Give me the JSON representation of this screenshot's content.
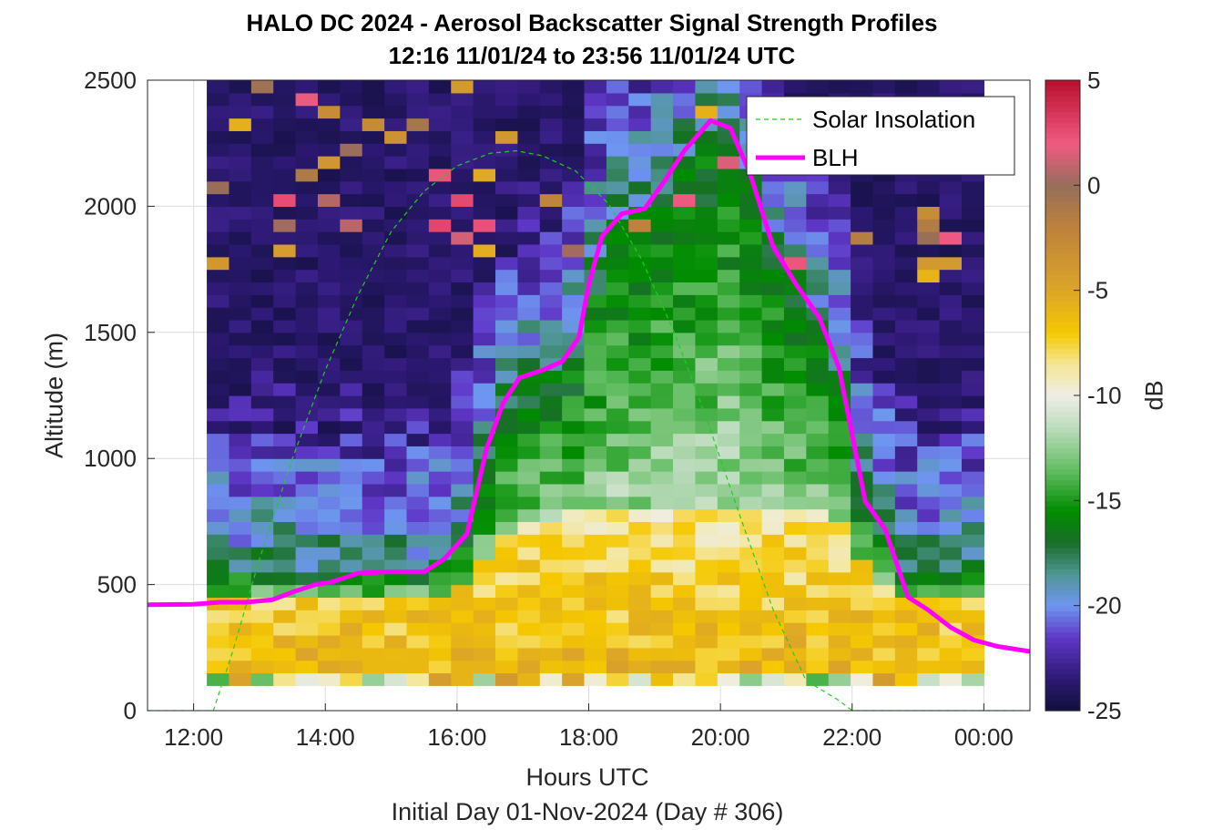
{
  "chart_data": {
    "type": "heatmap",
    "title": "HALO DC 2024 - Aerosol Backscatter Signal Strength Profiles",
    "subtitle": "12:16 11/01/24 to 23:56 11/01/24  UTC",
    "xlabel": "Hours UTC",
    "ylabel": "Altitude (m)",
    "footer": "Initial Day 01-Nov-2024 (Day # 306)",
    "xlim": [
      11.3,
      24.7
    ],
    "ylim": [
      0,
      2500
    ],
    "x_ticks": [
      12,
      14,
      16,
      18,
      20,
      22,
      24
    ],
    "x_tick_labels": [
      "12:00",
      "14:00",
      "16:00",
      "18:00",
      "20:00",
      "22:00",
      "00:00"
    ],
    "y_ticks": [
      0,
      500,
      1000,
      1500,
      2000,
      2500
    ],
    "y_tick_labels": [
      "0",
      "500",
      "1000",
      "1500",
      "2000",
      "2500"
    ],
    "grid": true,
    "colorbar": {
      "label": "dB",
      "range": [
        -25,
        5
      ],
      "ticks": [
        5,
        0,
        -5,
        -10,
        -15,
        -20,
        -25
      ],
      "tick_labels": [
        "5",
        "0",
        "-5",
        "-10",
        "-15",
        "-20",
        "-25"
      ]
    },
    "heatmap": {
      "x_start": 12.2,
      "x_end": 24.0,
      "columns": 35,
      "altitudes": [
        125,
        175,
        225,
        275,
        325,
        375,
        425,
        475,
        525,
        575,
        625,
        675,
        725,
        775,
        825,
        875,
        925,
        975,
        1025,
        1075,
        1125,
        1175,
        1225,
        1275,
        1325,
        1375,
        1425,
        1475,
        1525,
        1575,
        1625,
        1675,
        1725,
        1775,
        1825,
        1875,
        1925,
        1975,
        2025,
        2075,
        2125,
        2175,
        2225,
        2275,
        2325,
        2375,
        2425,
        2475
      ],
      "hours": [
        12.37,
        12.7,
        13.04,
        13.38,
        13.71,
        14.05,
        14.39,
        14.73,
        15.06,
        15.4,
        15.74,
        16.07,
        16.41,
        16.75,
        17.09,
        17.42,
        17.76,
        18.1,
        18.43,
        18.77,
        19.11,
        19.45,
        19.78,
        20.12,
        20.46,
        20.79,
        21.13,
        21.47,
        21.81,
        22.14,
        22.48,
        22.82,
        23.16,
        23.49,
        23.83
      ],
      "value_note": "signal strength in dB per column/altitude bin"
    },
    "series": [
      {
        "name": "Solar Insolation",
        "style": "dashed",
        "color": "#22cc22",
        "x": [
          11.3,
          12.3,
          12.6,
          13.0,
          13.5,
          14.0,
          14.5,
          15.0,
          15.5,
          16.0,
          16.5,
          16.9,
          17.3,
          17.8,
          18.3,
          18.8,
          19.3,
          19.8,
          20.3,
          20.8,
          21.3,
          21.8,
          22.0,
          24.7
        ],
        "y": [
          0,
          0,
          240,
          600,
          1000,
          1350,
          1650,
          1900,
          2060,
          2160,
          2210,
          2220,
          2200,
          2140,
          2010,
          1790,
          1500,
          1150,
          770,
          400,
          120,
          40,
          0,
          0
        ]
      },
      {
        "name": "BLH",
        "style": "solid",
        "color": "#ff00ff",
        "x": [
          11.3,
          12.0,
          12.4,
          12.8,
          13.2,
          13.5,
          13.85,
          14.1,
          14.5,
          14.9,
          15.2,
          15.5,
          15.8,
          16.15,
          16.45,
          16.7,
          16.95,
          17.3,
          17.6,
          17.85,
          18.0,
          18.2,
          18.5,
          18.85,
          19.15,
          19.45,
          19.85,
          20.15,
          20.45,
          20.8,
          21.15,
          21.5,
          21.8,
          22.2,
          22.5,
          22.85,
          23.15,
          23.5,
          23.85,
          24.2,
          24.7
        ],
        "y": [
          420,
          422,
          430,
          430,
          440,
          470,
          500,
          510,
          545,
          550,
          550,
          550,
          600,
          700,
          1040,
          1220,
          1320,
          1350,
          1385,
          1480,
          1690,
          1880,
          1970,
          1990,
          2100,
          2220,
          2340,
          2310,
          2130,
          1840,
          1690,
          1560,
          1360,
          830,
          720,
          450,
          400,
          330,
          280,
          255,
          235
        ]
      }
    ],
    "legend": {
      "placement": "top-right",
      "entries": [
        "Solar Insolation",
        "BLH"
      ]
    },
    "colors": {
      "blh": "#ff00ff",
      "solar": "#22cc22",
      "grid": "#dcdcdc"
    }
  }
}
